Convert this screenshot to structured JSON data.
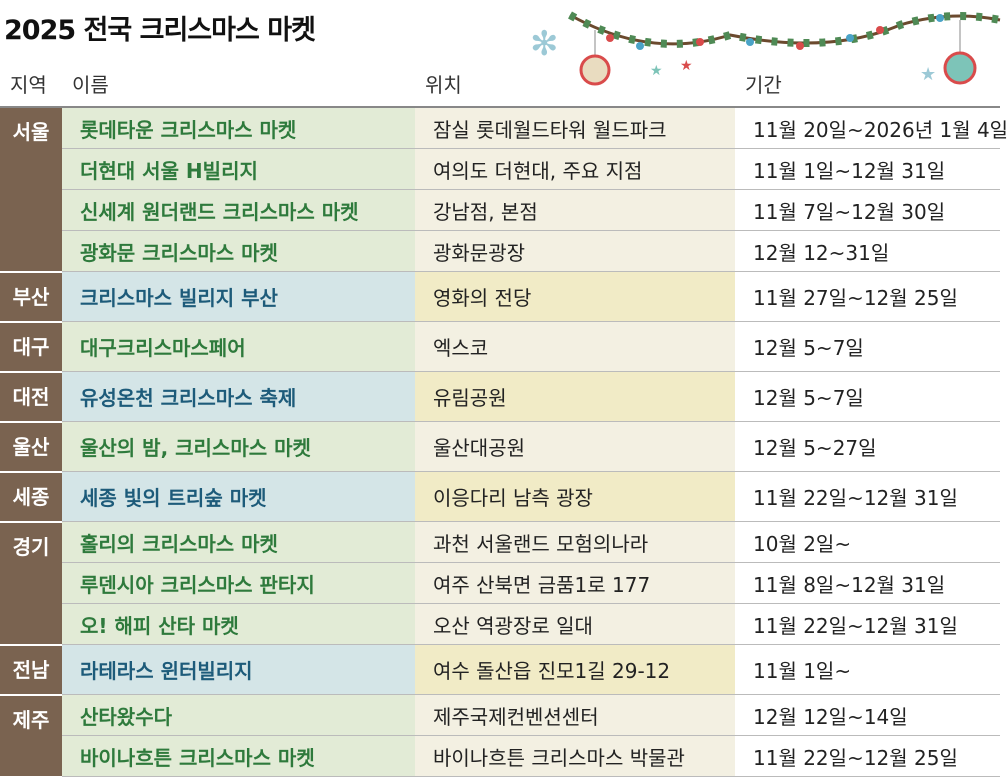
{
  "title": "2025 전국 크리스마스 마켓",
  "table": {
    "headers": [
      "지역",
      "이름",
      "위치",
      "기간"
    ],
    "regions": [
      {
        "region": "서울",
        "rows": [
          [
            "롯데타운 크리스마스 마켓",
            "잠실 롯데월드타워 월드파크",
            "11월 20일~2026년 1월 4일"
          ],
          [
            "더현대 서울 H빌리지",
            "여의도 더현대, 주요 지점",
            "11월 1일~12월 31일"
          ],
          [
            "신세계 원더랜드 크리스마스 마켓",
            "강남점, 본점",
            "11월 7일~12월 30일"
          ],
          [
            "광화문 크리스마스 마켓",
            "광화문광장",
            "12월 12~31일"
          ]
        ]
      },
      {
        "region": "부산",
        "rows": [
          [
            "크리스마스 빌리지 부산",
            "영화의 전당",
            "11월 27일~12월 25일"
          ]
        ]
      },
      {
        "region": "대구",
        "rows": [
          [
            "대구크리스마스페어",
            "엑스코",
            "12월 5~7일"
          ]
        ]
      },
      {
        "region": "대전",
        "rows": [
          [
            "유성온천 크리스마스 축제",
            "유림공원",
            "12월 5~7일"
          ]
        ]
      },
      {
        "region": "울산",
        "rows": [
          [
            "울산의 밤, 크리스마스 마켓",
            "울산대공원",
            "12월 5~27일"
          ]
        ]
      },
      {
        "region": "세종",
        "rows": [
          [
            "세종 빛의 트리숲 마켓",
            "이응다리 남측 광장",
            "11월 22일~12월 31일"
          ]
        ]
      },
      {
        "region": "경기",
        "rows": [
          [
            "홀리의 크리스마스 마켓",
            "과천 서울랜드 모험의나라",
            "10월 2일~"
          ],
          [
            "루덴시아 크리스마스 판타지",
            "여주 산북면 금품1로 177",
            "11월 8일~12월 31일"
          ],
          [
            "오! 해피 산타 마켓",
            "오산 역광장로 일대",
            "11월 22일~12월 31일"
          ]
        ]
      },
      {
        "region": "전남",
        "rows": [
          [
            "라테라스 윈터빌리지",
            "여수 돌산읍 진모1길 29-12",
            "11월 1일~"
          ]
        ]
      },
      {
        "region": "제주",
        "rows": [
          [
            "산타왔수다",
            "제주국제컨벤션센터",
            "12월 12일~14일"
          ],
          [
            "바이나흐튼 크리스마스 마켓",
            "바이나흐튼 크리스마스 박물관",
            "11월 22일~12월 25일"
          ]
        ]
      }
    ]
  }
}
